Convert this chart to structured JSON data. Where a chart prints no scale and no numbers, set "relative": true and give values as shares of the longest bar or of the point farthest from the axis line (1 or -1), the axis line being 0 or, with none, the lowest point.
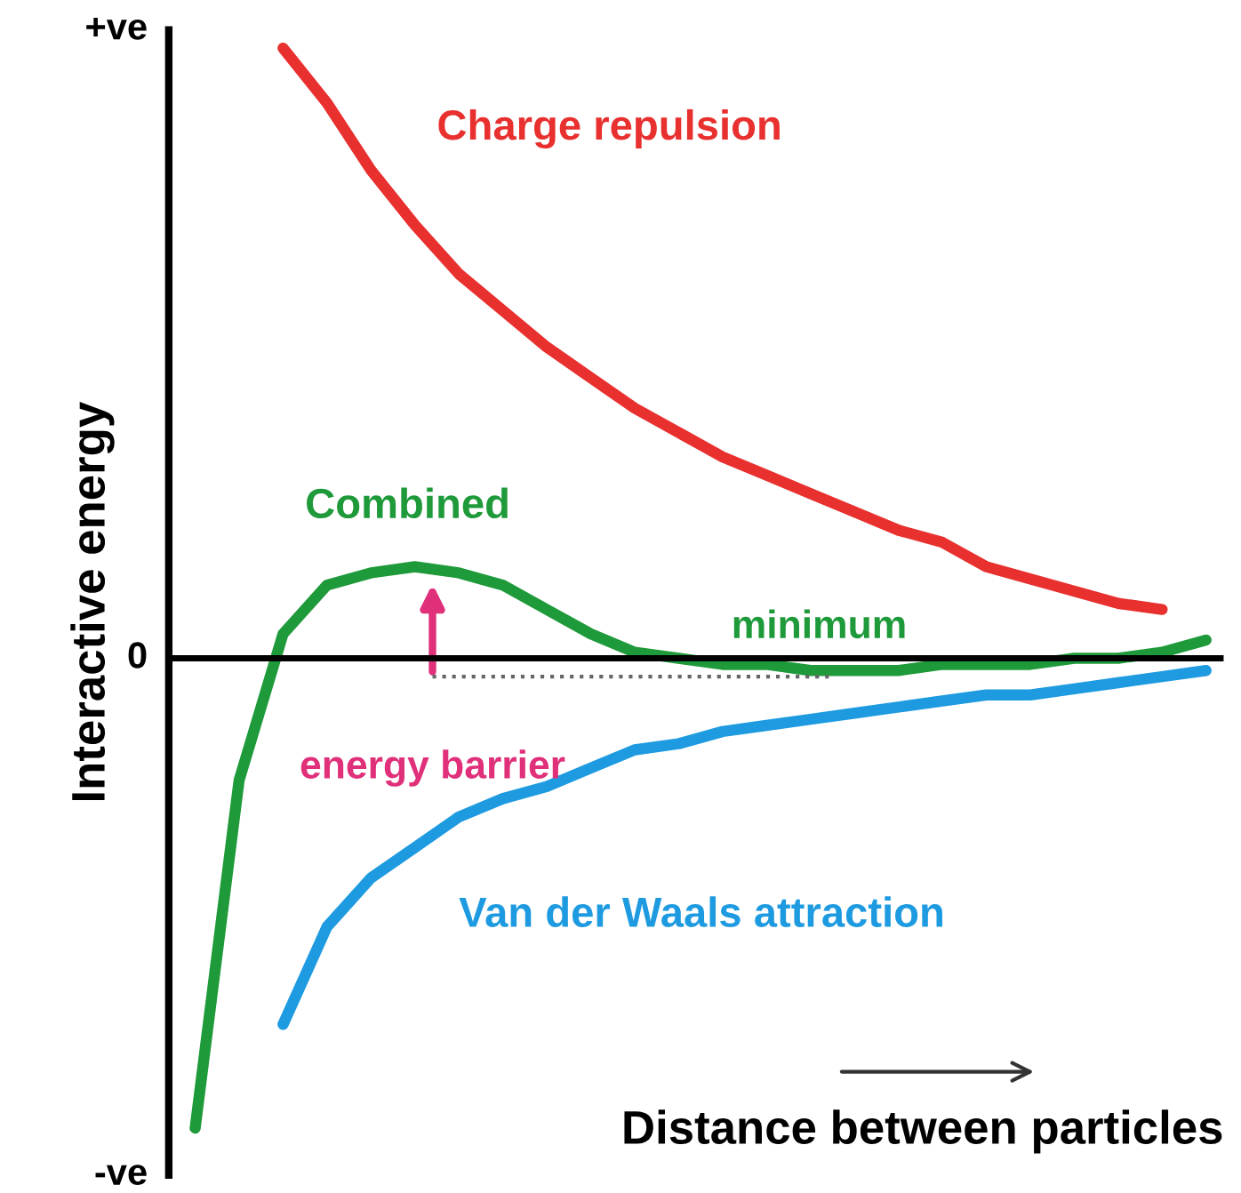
{
  "chart_data": {
    "type": "line",
    "relative": true,
    "xlabel": "Distance between particles",
    "ylabel": "Interactive energy",
    "categories": [
      null,
      null,
      null,
      null,
      null,
      null,
      null,
      null,
      null,
      null,
      null,
      null,
      null,
      null,
      null,
      null,
      null,
      null,
      null,
      null,
      null,
      null,
      null,
      null
    ],
    "series": [
      {
        "name": "Charge repulsion",
        "color": "#e8302f",
        "values": [
          null,
          null,
          1.0,
          0.91,
          0.8,
          0.71,
          0.63,
          0.57,
          0.51,
          0.46,
          0.41,
          0.37,
          0.33,
          0.3,
          0.27,
          0.24,
          0.21,
          0.19,
          0.15,
          0.13,
          0.11,
          0.09,
          0.08,
          null
        ]
      },
      {
        "name": "Combined",
        "color": "#1f9a3a",
        "values": [
          -0.77,
          -0.2,
          0.04,
          0.12,
          0.14,
          0.15,
          0.14,
          0.12,
          0.08,
          0.04,
          0.01,
          0.0,
          -0.01,
          -0.01,
          -0.02,
          -0.02,
          -0.02,
          -0.01,
          -0.01,
          -0.01,
          0.0,
          0.0,
          0.01,
          0.03
        ]
      },
      {
        "name": "Van der Waals attraction",
        "color": "#1e9be0",
        "values": [
          null,
          null,
          -0.6,
          -0.44,
          -0.36,
          -0.31,
          -0.26,
          -0.23,
          -0.21,
          -0.18,
          -0.15,
          -0.14,
          -0.12,
          -0.11,
          -0.1,
          -0.09,
          -0.08,
          -0.07,
          -0.06,
          -0.06,
          -0.05,
          -0.04,
          -0.03,
          -0.02
        ]
      }
    ],
    "ref_lines": [
      {
        "axis": "y",
        "value": -0.03,
        "color": "#666666",
        "line_style": "dotted"
      }
    ],
    "annotations": [
      "+ve",
      "0",
      "-ve",
      "minimum",
      "energy barrier"
    ],
    "grid": false
  }
}
